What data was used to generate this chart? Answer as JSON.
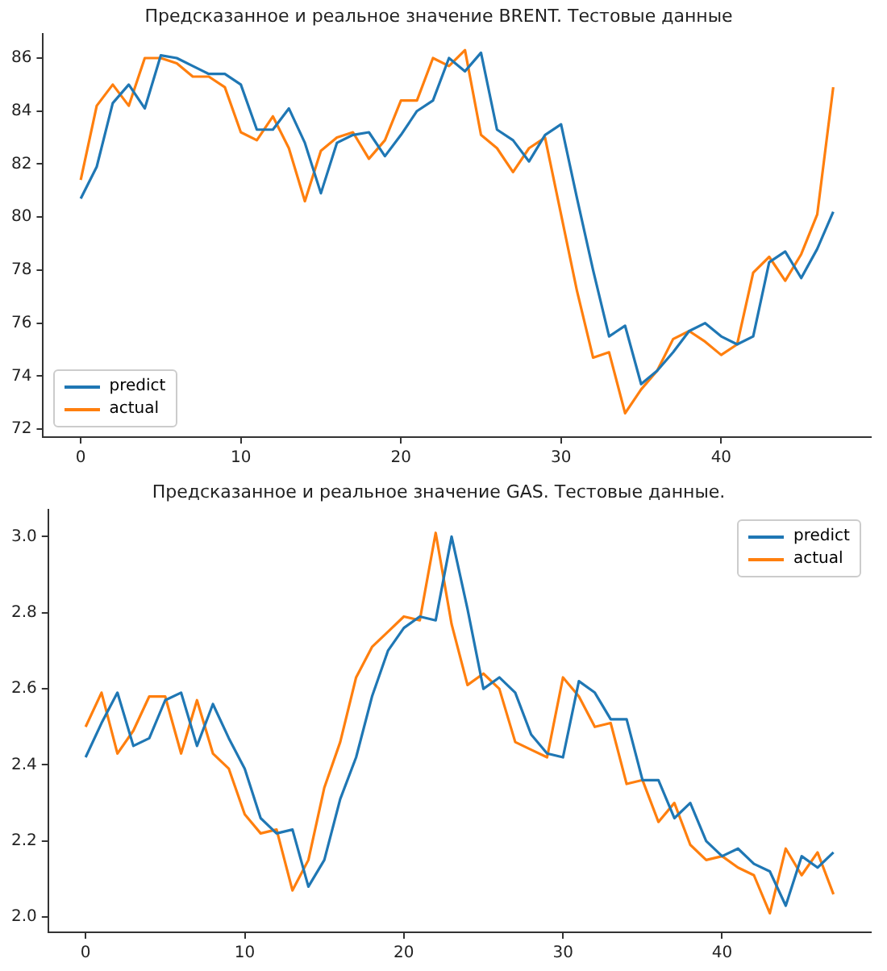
{
  "chart_data": [
    {
      "type": "line",
      "title": "Предсказанное и реальное значение BRENT. Тестовые данные",
      "x": [
        0,
        1,
        2,
        3,
        4,
        5,
        6,
        7,
        8,
        9,
        10,
        11,
        12,
        13,
        14,
        15,
        16,
        17,
        18,
        19,
        20,
        21,
        22,
        23,
        24,
        25,
        26,
        27,
        28,
        29,
        30,
        31,
        32,
        33,
        34,
        35,
        36,
        37,
        38,
        39,
        40,
        41,
        42,
        43,
        44,
        45,
        46,
        47
      ],
      "xlim": [
        -2.35,
        49.35
      ],
      "xticks": [
        0,
        10,
        20,
        30,
        40
      ],
      "ylim": [
        71.7,
        86.9
      ],
      "yticks": [
        72,
        74,
        76,
        78,
        80,
        82,
        84,
        86
      ],
      "grid": false,
      "marker": "none",
      "legend": "bottom left",
      "series": [
        {
          "name": "predict",
          "color": "#1f77b4",
          "values": [
            80.7,
            81.9,
            84.3,
            85.0,
            84.1,
            86.1,
            86.0,
            85.7,
            85.4,
            85.4,
            85.0,
            83.3,
            83.3,
            84.1,
            82.8,
            80.9,
            82.8,
            83.1,
            83.2,
            82.3,
            83.1,
            84.0,
            84.4,
            86.0,
            85.5,
            86.2,
            83.3,
            82.9,
            82.1,
            83.1,
            83.5,
            80.7,
            78.0,
            75.5,
            75.9,
            73.7,
            74.2,
            74.9,
            75.7,
            76.0,
            75.5,
            75.2,
            75.5,
            78.3,
            78.7,
            77.7,
            78.8,
            80.2
          ]
        },
        {
          "name": "actual",
          "color": "#ff7f0e",
          "values": [
            81.4,
            84.2,
            85.0,
            84.2,
            86.0,
            86.0,
            85.8,
            85.3,
            85.3,
            84.9,
            83.2,
            82.9,
            83.8,
            82.6,
            80.6,
            82.5,
            83.0,
            83.2,
            82.2,
            82.9,
            84.4,
            84.4,
            86.0,
            85.7,
            86.3,
            83.1,
            82.6,
            81.7,
            82.6,
            83.0,
            80.1,
            77.2,
            74.7,
            74.9,
            72.6,
            73.5,
            74.2,
            75.4,
            75.7,
            75.3,
            74.8,
            75.2,
            77.9,
            78.5,
            77.6,
            78.6,
            80.1,
            84.9
          ]
        }
      ]
    },
    {
      "type": "line",
      "title": "Предсказанное и реальное значение GAS. Тестовые данные.",
      "x": [
        0,
        1,
        2,
        3,
        4,
        5,
        6,
        7,
        8,
        9,
        10,
        11,
        12,
        13,
        14,
        15,
        16,
        17,
        18,
        19,
        20,
        21,
        22,
        23,
        24,
        25,
        26,
        27,
        28,
        29,
        30,
        31,
        32,
        33,
        34,
        35,
        36,
        37,
        38,
        39,
        40,
        41,
        42,
        43,
        44,
        45,
        46,
        47
      ],
      "xlim": [
        -2.35,
        49.35
      ],
      "xticks": [
        0,
        10,
        20,
        30,
        40
      ],
      "ylim": [
        1.96,
        3.07
      ],
      "yticks": [
        {
          "value": 2,
          "label": "2.0"
        },
        2.2,
        2.4,
        2.6,
        2.8,
        {
          "value": 3,
          "label": "3.0"
        }
      ],
      "grid": false,
      "marker": "none",
      "legend": "top right",
      "series": [
        {
          "name": "predict",
          "color": "#1f77b4",
          "values": [
            2.42,
            2.51,
            2.59,
            2.45,
            2.47,
            2.57,
            2.59,
            2.45,
            2.56,
            2.47,
            2.39,
            2.26,
            2.22,
            2.23,
            2.08,
            2.15,
            2.31,
            2.42,
            2.58,
            2.7,
            2.76,
            2.79,
            2.78,
            3.0,
            2.81,
            2.6,
            2.63,
            2.59,
            2.48,
            2.43,
            2.42,
            2.62,
            2.59,
            2.52,
            2.52,
            2.36,
            2.36,
            2.26,
            2.3,
            2.2,
            2.16,
            2.18,
            2.14,
            2.12,
            2.03,
            2.16,
            2.13,
            2.17
          ]
        },
        {
          "name": "actual",
          "color": "#ff7f0e",
          "values": [
            2.5,
            2.59,
            2.43,
            2.49,
            2.58,
            2.58,
            2.43,
            2.57,
            2.43,
            2.39,
            2.27,
            2.22,
            2.23,
            2.07,
            2.15,
            2.34,
            2.46,
            2.63,
            2.71,
            2.75,
            2.79,
            2.78,
            3.01,
            2.77,
            2.61,
            2.64,
            2.6,
            2.46,
            2.44,
            2.42,
            2.63,
            2.58,
            2.5,
            2.51,
            2.35,
            2.36,
            2.25,
            2.3,
            2.19,
            2.15,
            2.16,
            2.13,
            2.11,
            2.01,
            2.18,
            2.11,
            2.17,
            2.06
          ]
        }
      ]
    }
  ]
}
